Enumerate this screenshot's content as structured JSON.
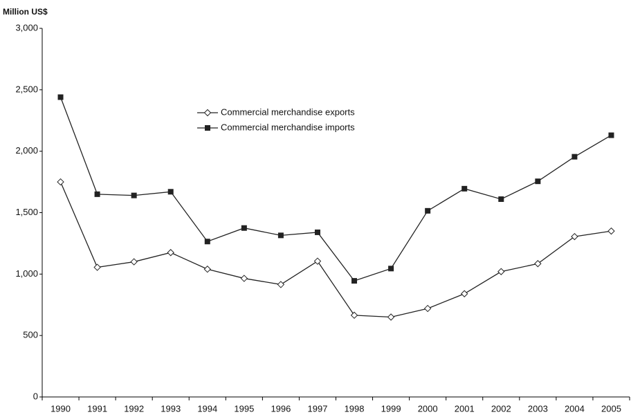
{
  "chart_data": {
    "type": "line",
    "y_axis_label": "Million US$",
    "categories": [
      "1990",
      "1991",
      "1992",
      "1993",
      "1994",
      "1995",
      "1996",
      "1997",
      "1998",
      "1999",
      "2000",
      "2001",
      "2002",
      "2003",
      "2004",
      "2005"
    ],
    "series": [
      {
        "name": "Commercial merchandise exports",
        "color": "#222222",
        "marker": "diamond",
        "values": [
          1750,
          1055,
          1100,
          1175,
          1040,
          965,
          915,
          1105,
          665,
          650,
          720,
          840,
          1020,
          1085,
          1305,
          1350
        ]
      },
      {
        "name": "Commercial merchandise imports",
        "color": "#222222",
        "marker": "square",
        "values": [
          2440,
          1650,
          1640,
          1670,
          1265,
          1375,
          1315,
          1340,
          945,
          1045,
          1515,
          1695,
          1610,
          1755,
          1955,
          2130
        ]
      }
    ],
    "ylim": [
      0,
      3000
    ],
    "yticks": [
      0,
      500,
      {
        "value": 1000,
        "label": "1,000"
      },
      {
        "value": 1500,
        "label": "1,500"
      },
      {
        "value": 2000,
        "label": "2,000"
      },
      {
        "value": 2500,
        "label": "2,500"
      },
      {
        "value": 3000,
        "label": "3,000"
      }
    ],
    "grid": false
  }
}
